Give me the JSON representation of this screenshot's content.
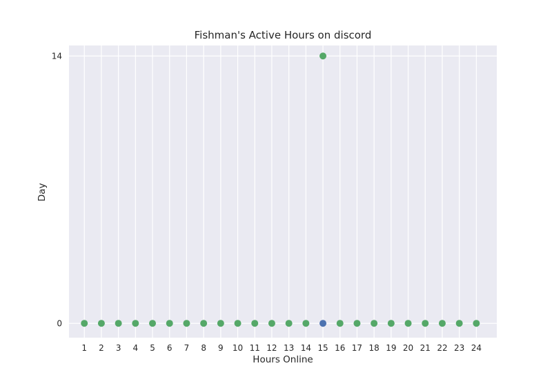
{
  "colors": {
    "plot_background": "#EAEAF2",
    "grid": "#FFFFFF",
    "text": "#262626",
    "series_blue": "#4C72B0",
    "series_green": "#55A868"
  },
  "chart_data": {
    "type": "scatter",
    "title": "Fishman's Active Hours on discord",
    "xlabel": "Hours Online",
    "ylabel": "Day",
    "x_ticks": [
      "1",
      "2",
      "3",
      "4",
      "5",
      "6",
      "7",
      "8",
      "9",
      "10",
      "11",
      "12",
      "13",
      "14",
      "15",
      "16",
      "17",
      "18",
      "19",
      "20",
      "21",
      "22",
      "23",
      "24"
    ],
    "y_ticks": [
      "0",
      "14"
    ],
    "xlim": [
      0.1,
      25.2
    ],
    "ylim": [
      -0.75,
      14.55
    ],
    "grid": true,
    "series": [
      {
        "color": "#4C72B0",
        "points": [
          {
            "x": 15,
            "y": 0
          }
        ]
      },
      {
        "color": "#55A868",
        "points": [
          {
            "x": 1,
            "y": 0
          },
          {
            "x": 2,
            "y": 0
          },
          {
            "x": 3,
            "y": 0
          },
          {
            "x": 4,
            "y": 0
          },
          {
            "x": 5,
            "y": 0
          },
          {
            "x": 6,
            "y": 0
          },
          {
            "x": 7,
            "y": 0
          },
          {
            "x": 8,
            "y": 0
          },
          {
            "x": 9,
            "y": 0
          },
          {
            "x": 10,
            "y": 0
          },
          {
            "x": 11,
            "y": 0
          },
          {
            "x": 12,
            "y": 0
          },
          {
            "x": 13,
            "y": 0
          },
          {
            "x": 14,
            "y": 0
          },
          {
            "x": 15,
            "y": 14
          },
          {
            "x": 16,
            "y": 0
          },
          {
            "x": 17,
            "y": 0
          },
          {
            "x": 18,
            "y": 0
          },
          {
            "x": 19,
            "y": 0
          },
          {
            "x": 20,
            "y": 0
          },
          {
            "x": 21,
            "y": 0
          },
          {
            "x": 22,
            "y": 0
          },
          {
            "x": 23,
            "y": 0
          },
          {
            "x": 24,
            "y": 0
          }
        ]
      }
    ]
  }
}
